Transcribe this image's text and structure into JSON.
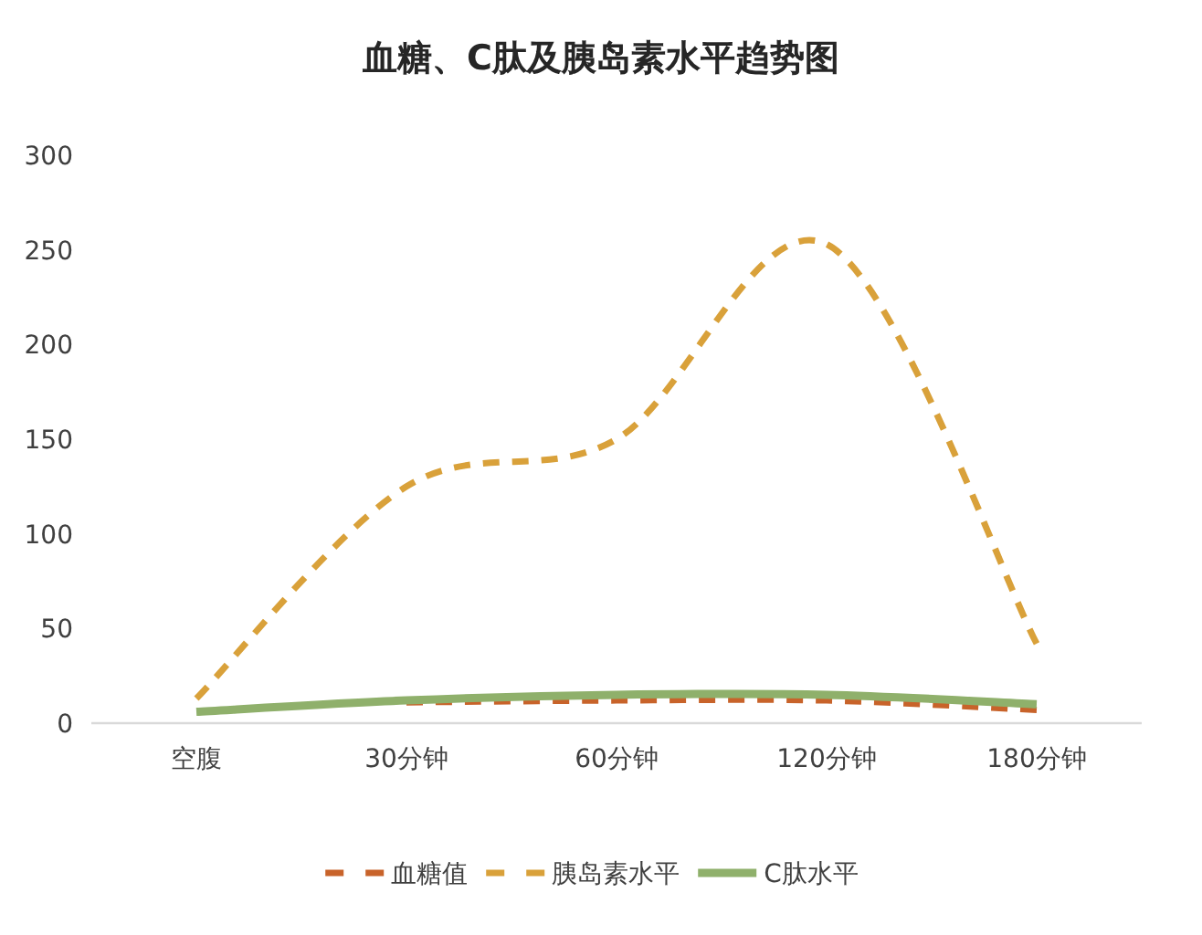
{
  "chart_data": {
    "type": "line",
    "title": "血糖、C肽及胰岛素水平趋势图",
    "categories": [
      "空腹",
      "30分钟",
      "60分钟",
      "120分钟",
      "180分钟"
    ],
    "series": [
      {
        "name": "血糖值",
        "color": "#c8632a",
        "line_style": "dashed",
        "values": [
          null,
          11,
          12,
          12,
          7
        ]
      },
      {
        "name": "胰岛素水平",
        "color": "#d9a13a",
        "line_style": "dashed",
        "values": [
          13,
          125,
          150,
          253,
          42
        ]
      },
      {
        "name": "C肽水平",
        "color": "#8fb06b",
        "line_style": "solid",
        "values": [
          6,
          12,
          15,
          15,
          10
        ]
      }
    ],
    "ylim": [
      0,
      300
    ],
    "yticks": [
      0,
      50,
      100,
      150,
      200,
      250,
      300
    ],
    "legend": "bottom"
  }
}
